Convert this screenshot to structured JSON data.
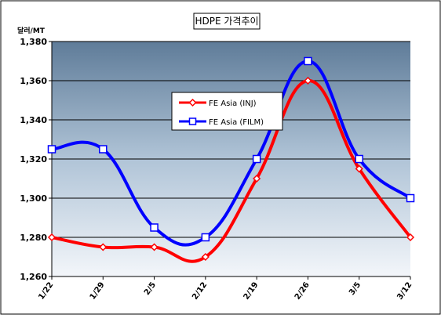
{
  "chart_data": {
    "type": "line",
    "title": "HDPE 가격추이",
    "unit_label": "달러/MT",
    "categories": [
      "1/22",
      "1/29",
      "2/5",
      "2/12",
      "2/19",
      "2/26",
      "3/5",
      "3/12"
    ],
    "ylim": [
      1260,
      1380
    ],
    "ytick_step": 20,
    "grid": true,
    "legend_position": "inside-center",
    "series": [
      {
        "name": "FE Asia (INJ)",
        "color": "#ff0000",
        "marker": "diamond",
        "values": [
          1280,
          1275,
          1275,
          1270,
          1310,
          1360,
          1315,
          1280
        ]
      },
      {
        "name": "FE Asia (FILM)",
        "color": "#0000ff",
        "marker": "square",
        "values": [
          1325,
          1325,
          1285,
          1280,
          1320,
          1370,
          1320,
          1300
        ]
      }
    ]
  }
}
